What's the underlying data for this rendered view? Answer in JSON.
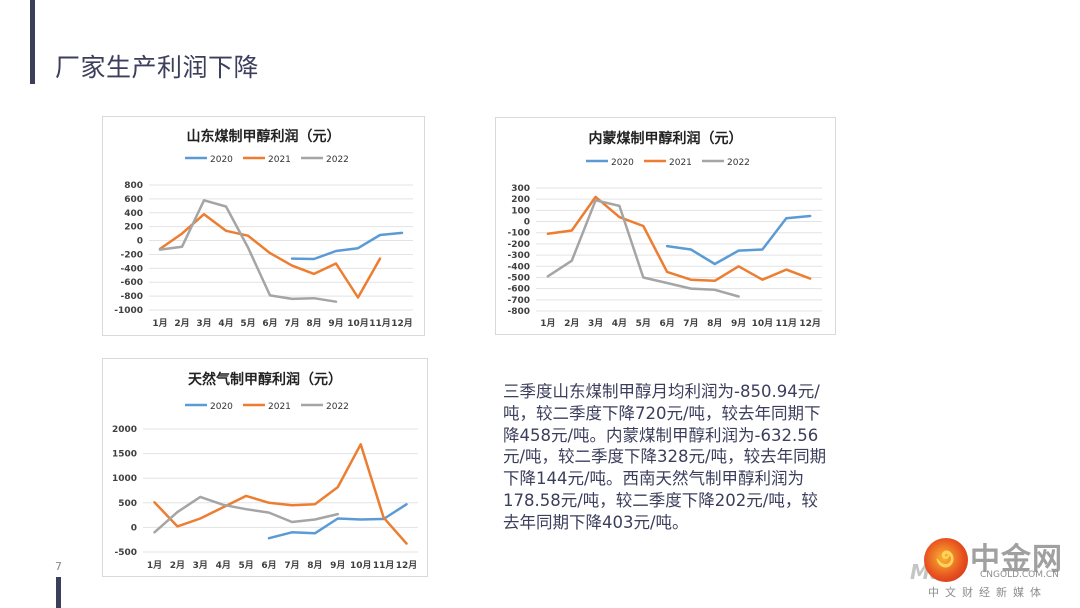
{
  "page": {
    "title": "厂家生产利润下降",
    "page_number": "7",
    "summary": "三季度山东煤制甲醇月均利润为-850.94元/吨，较二季度下降720元/吨，较去年同期下降458元/吨。内蒙煤制甲醇利润为-632.56元/吨，较二季度下降328元/吨，较去年同期下降144元/吨。西南天然气制甲醇利润为178.58元/吨，较二季度下降202元/吨，较去年同期下降403元/吨。"
  },
  "logo": {
    "name": "中金网",
    "domain": "CNGOLD.COM.CN",
    "tagline": "中文财经新媒体",
    "watermark": "Mae"
  },
  "colors": {
    "2020": "#5b9bd5",
    "2021": "#ed7d31",
    "2022": "#a5a5a5",
    "grid": "#e3e3e3",
    "text": "#404040"
  },
  "chart_data": [
    {
      "type": "line",
      "title": "山东煤制甲醇利润（元）",
      "xlabel": "",
      "ylabel": "",
      "categories": [
        "1月",
        "2月",
        "3月",
        "4月",
        "5月",
        "6月",
        "7月",
        "8月",
        "9月",
        "10月",
        "11月",
        "12月"
      ],
      "ylim": [
        -1000,
        800
      ],
      "yticks": [
        800,
        600,
        400,
        200,
        0,
        -200,
        -400,
        -600,
        -800,
        -1000
      ],
      "grid": true,
      "legend": "top",
      "series": [
        {
          "name": "2020",
          "values": [
            null,
            null,
            null,
            null,
            null,
            null,
            -260,
            -265,
            -150,
            -110,
            80,
            110
          ]
        },
        {
          "name": "2021",
          "values": [
            -120,
            100,
            380,
            140,
            70,
            -180,
            -360,
            -480,
            -330,
            -820,
            -260,
            null
          ]
        },
        {
          "name": "2022",
          "values": [
            -130,
            -90,
            580,
            490,
            -100,
            -790,
            -840,
            -830,
            -880,
            null,
            null,
            null
          ]
        }
      ]
    },
    {
      "type": "line",
      "title": "内蒙煤制甲醇利润（元）",
      "xlabel": "",
      "ylabel": "",
      "categories": [
        "1月",
        "2月",
        "3月",
        "4月",
        "5月",
        "6月",
        "7月",
        "8月",
        "9月",
        "10月",
        "11月",
        "12月"
      ],
      "ylim": [
        -800,
        300
      ],
      "yticks": [
        300,
        200,
        100,
        0,
        -100,
        -200,
        -300,
        -400,
        -500,
        -600,
        -700,
        -800
      ],
      "grid": true,
      "legend": "top",
      "series": [
        {
          "name": "2020",
          "values": [
            null,
            null,
            null,
            null,
            null,
            -220,
            -250,
            -380,
            -260,
            -250,
            30,
            50
          ]
        },
        {
          "name": "2021",
          "values": [
            -110,
            -80,
            220,
            40,
            -40,
            -450,
            -520,
            -530,
            -400,
            -520,
            -430,
            -510
          ]
        },
        {
          "name": "2022",
          "values": [
            -490,
            -350,
            190,
            140,
            -500,
            -550,
            -600,
            -610,
            -670,
            null,
            null,
            null
          ]
        }
      ]
    },
    {
      "type": "line",
      "title": "天然气制甲醇利润（元）",
      "xlabel": "",
      "ylabel": "",
      "categories": [
        "1月",
        "2月",
        "3月",
        "4月",
        "5月",
        "6月",
        "7月",
        "8月",
        "9月",
        "10月",
        "11月",
        "12月"
      ],
      "ylim": [
        -500,
        2000
      ],
      "yticks": [
        2000,
        1500,
        1000,
        500,
        0,
        -500
      ],
      "grid": true,
      "legend": "top",
      "series": [
        {
          "name": "2020",
          "values": [
            null,
            null,
            null,
            null,
            null,
            -220,
            -100,
            -120,
            180,
            160,
            170,
            470
          ]
        },
        {
          "name": "2021",
          "values": [
            510,
            20,
            180,
            410,
            640,
            500,
            450,
            470,
            820,
            1690,
            200,
            -330
          ]
        },
        {
          "name": "2022",
          "values": [
            -100,
            310,
            620,
            460,
            370,
            300,
            110,
            160,
            270,
            null,
            null,
            null
          ]
        }
      ]
    }
  ]
}
